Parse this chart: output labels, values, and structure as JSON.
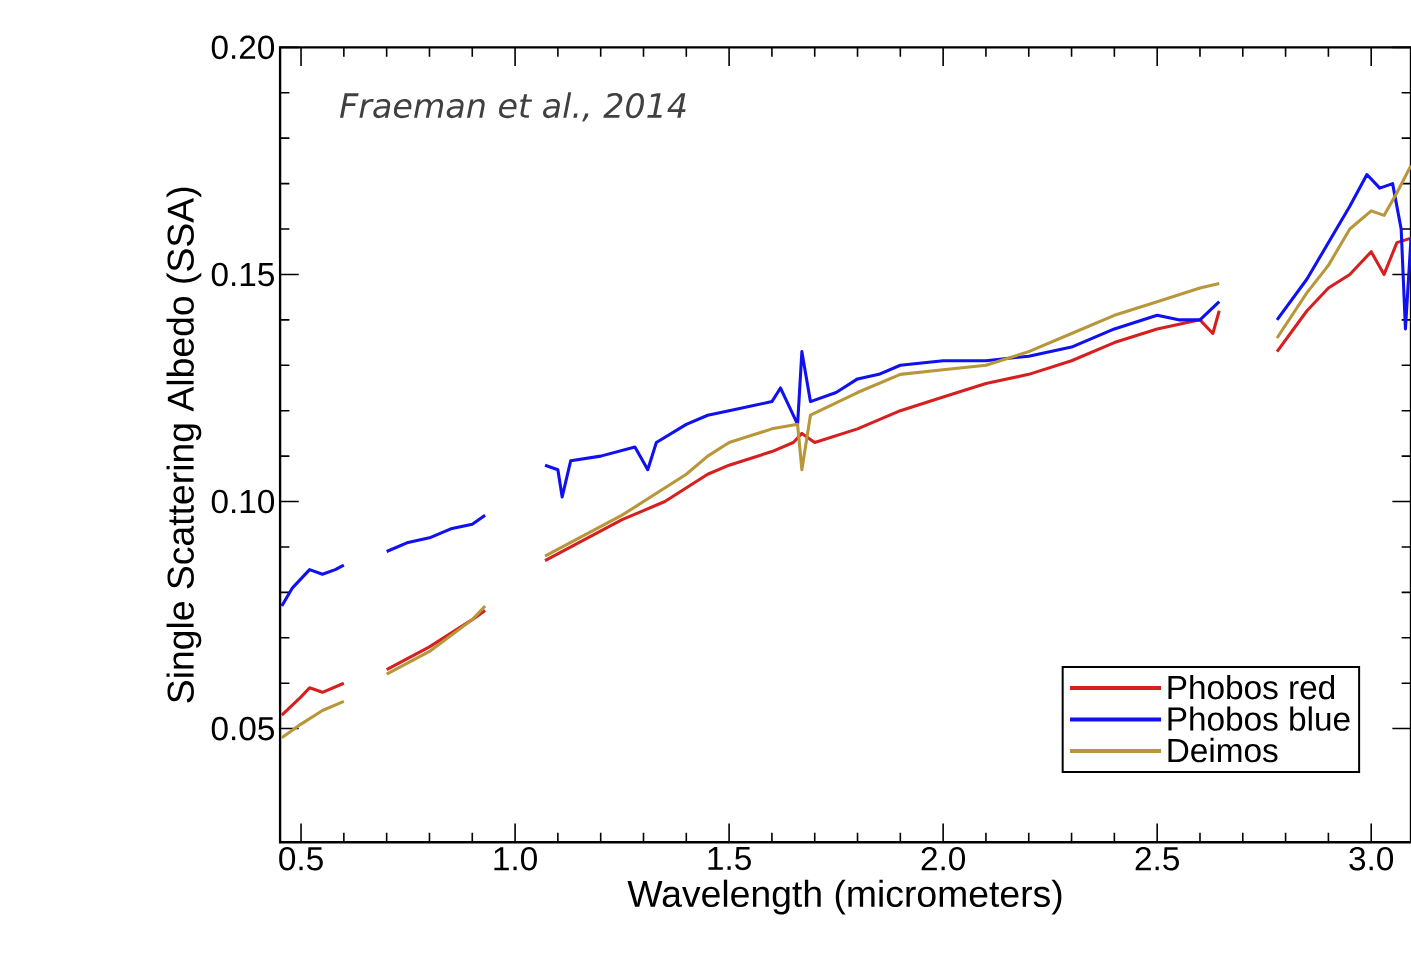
{
  "chart_data": {
    "type": "line",
    "xlabel": "Wavelength (micrometers)",
    "ylabel": "Single Scattering Albedo (SSA)",
    "annotations": [
      "Fraeman et al., 2014"
    ],
    "xlim": [
      0.451,
      3.093
    ],
    "ylim": [
      0.025,
      0.2
    ],
    "xticks": [
      {
        "value": 0.5,
        "label": "0.5"
      },
      {
        "value": 1.0,
        "label": "1.0"
      },
      {
        "value": 1.5,
        "label": "1.5"
      },
      {
        "value": 2.0,
        "label": "2.0"
      },
      {
        "value": 2.5,
        "label": "2.5"
      },
      {
        "value": 3.0,
        "label": "3.0"
      }
    ],
    "yticks": [
      {
        "value": 0.05,
        "label": "0.05"
      },
      {
        "value": 0.1,
        "label": "0.10"
      },
      {
        "value": 0.15,
        "label": "0.15"
      },
      {
        "value": 0.2,
        "label": "0.20"
      }
    ],
    "legend": "bottom right",
    "marker": "none",
    "line_style": "solid",
    "series": [
      {
        "name": "Phobos red",
        "color": "#d62020",
        "x": [
          0.455,
          0.5,
          0.52,
          0.55,
          0.6,
          0.65,
          0.7,
          0.8,
          0.9,
          0.93,
          1.0,
          1.07,
          1.15,
          1.25,
          1.35,
          1.4,
          1.45,
          1.5,
          1.6,
          1.65,
          1.67,
          1.7,
          1.8,
          1.9,
          2.0,
          2.1,
          2.2,
          2.3,
          2.4,
          2.5,
          2.6,
          2.63,
          2.645,
          2.7,
          2.78,
          2.85,
          2.9,
          2.95,
          3.0,
          3.03,
          3.06,
          3.093
        ],
        "values": [
          0.053,
          0.057,
          0.059,
          0.058,
          0.06,
          null,
          0.063,
          0.068,
          0.074,
          0.076,
          null,
          0.087,
          0.091,
          0.096,
          0.1,
          0.103,
          0.106,
          0.108,
          0.111,
          0.113,
          0.115,
          0.113,
          0.116,
          0.12,
          0.123,
          0.126,
          0.128,
          0.131,
          0.135,
          0.138,
          0.14,
          0.137,
          0.142,
          null,
          0.133,
          0.142,
          0.147,
          0.15,
          0.155,
          0.15,
          0.157,
          0.158
        ]
      },
      {
        "name": "Phobos blue",
        "color": "#1010f0",
        "x": [
          0.455,
          0.48,
          0.52,
          0.55,
          0.58,
          0.6,
          0.65,
          0.7,
          0.75,
          0.8,
          0.85,
          0.9,
          0.93,
          1.0,
          1.07,
          1.1,
          1.11,
          1.13,
          1.2,
          1.28,
          1.31,
          1.33,
          1.4,
          1.45,
          1.5,
          1.55,
          1.6,
          1.62,
          1.64,
          1.66,
          1.67,
          1.69,
          1.75,
          1.8,
          1.85,
          1.9,
          2.0,
          2.1,
          2.2,
          2.3,
          2.4,
          2.5,
          2.55,
          2.6,
          2.645,
          2.7,
          2.78,
          2.85,
          2.9,
          2.95,
          2.99,
          3.02,
          3.05,
          3.07,
          3.08,
          3.093
        ],
        "values": [
          0.077,
          0.081,
          0.085,
          0.084,
          0.085,
          0.086,
          null,
          0.089,
          0.091,
          0.092,
          0.094,
          0.095,
          0.097,
          null,
          0.108,
          0.107,
          0.101,
          0.109,
          0.11,
          0.112,
          0.107,
          0.113,
          0.117,
          0.119,
          0.12,
          0.121,
          0.122,
          0.125,
          0.121,
          0.117,
          0.133,
          0.122,
          0.124,
          0.127,
          0.128,
          0.13,
          0.131,
          0.131,
          0.132,
          0.134,
          0.138,
          0.141,
          0.14,
          0.14,
          0.144,
          null,
          0.14,
          0.149,
          0.157,
          0.165,
          0.172,
          0.169,
          0.17,
          0.16,
          0.138,
          0.158
        ]
      },
      {
        "name": "Deimos",
        "color": "#b8963a",
        "x": [
          0.455,
          0.5,
          0.55,
          0.6,
          0.65,
          0.7,
          0.8,
          0.9,
          0.93,
          1.0,
          1.07,
          1.15,
          1.25,
          1.35,
          1.4,
          1.45,
          1.5,
          1.6,
          1.66,
          1.67,
          1.69,
          1.8,
          1.9,
          2.0,
          2.1,
          2.2,
          2.3,
          2.4,
          2.5,
          2.6,
          2.645,
          2.7,
          2.78,
          2.85,
          2.9,
          2.95,
          3.0,
          3.03,
          3.06,
          3.093
        ],
        "values": [
          0.048,
          0.051,
          0.054,
          0.056,
          null,
          0.062,
          0.067,
          0.074,
          0.077,
          null,
          0.088,
          0.092,
          0.097,
          0.103,
          0.106,
          0.11,
          0.113,
          0.116,
          0.117,
          0.107,
          0.119,
          0.124,
          0.128,
          0.129,
          0.13,
          0.133,
          0.137,
          0.141,
          0.144,
          0.147,
          0.148,
          null,
          0.136,
          0.146,
          0.152,
          0.16,
          0.164,
          0.163,
          0.168,
          0.174
        ]
      }
    ]
  }
}
